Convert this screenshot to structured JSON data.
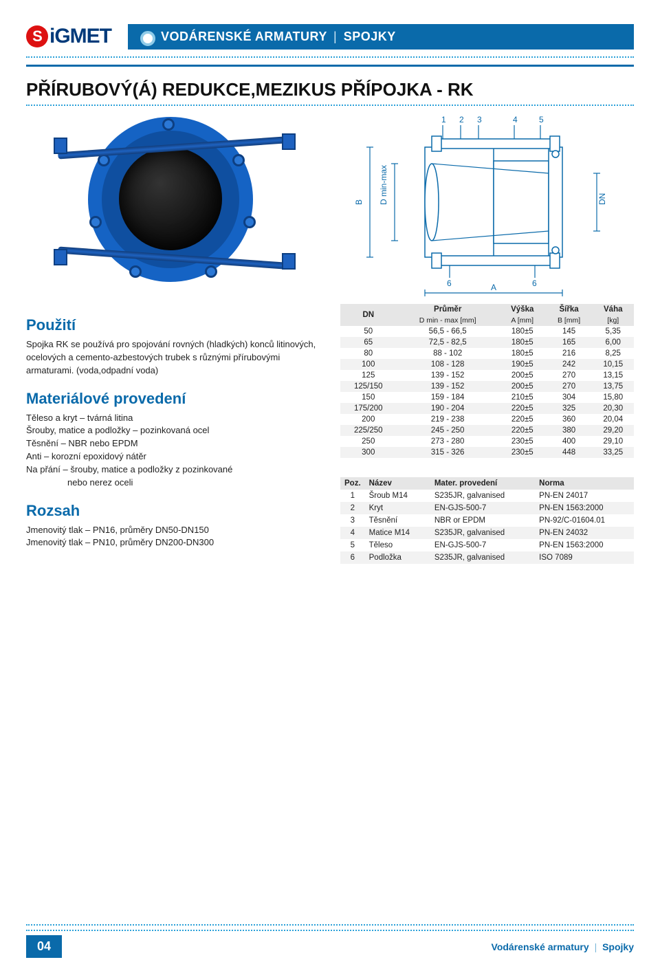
{
  "header": {
    "logo_text": "iGMET",
    "logo_letter": "S",
    "banner_left": "VODÁRENSKÉ ARMATURY",
    "banner_right": "SPOJKY"
  },
  "title": "PŘÍRUBOVÝ(Á) REDUKCE,MEZIKUS PŘÍPOJKA - RK",
  "diagram": {
    "callouts": [
      "1",
      "2",
      "3",
      "4",
      "5",
      "6",
      "6"
    ],
    "dims": {
      "B": "B",
      "Dminmax": "D min-max",
      "DN": "DN",
      "A": "A"
    }
  },
  "usage": {
    "heading": "Použití",
    "text": "Spojka RK se používá pro spojování rovných (hladkých) konců litinových, ocelových a cemento-azbestových trubek s různými přírubovými armaturami. (voda,odpadní voda)"
  },
  "material": {
    "heading": "Materiálové provedení",
    "lines": [
      "Těleso a kryt – tvárná litina",
      "Šrouby, matice a podložky – pozinkovaná ocel",
      "Těsnění – NBR nebo EPDM",
      "Anti – korozní epoxidový nátěr",
      "Na přání – šrouby, matice a podložky z pozinkované"
    ],
    "indent_line": "nebo nerez oceli"
  },
  "range": {
    "heading": "Rozsah",
    "lines": [
      "Jmenovitý tlak – PN16, průměry DN50-DN150",
      "Jmenovitý tlak – PN10, průměry DN200-DN300"
    ]
  },
  "dim_table": {
    "head_top": {
      "dn": "DN",
      "prumer": "Průměr",
      "vyska": "Výška",
      "sirka": "Šířka",
      "vaha": "Váha"
    },
    "head_sub": {
      "d": "D min - max  [mm]",
      "a": "A [mm]",
      "b": "B [mm]",
      "kg": "[kg]"
    },
    "rows": [
      [
        "50",
        "56,5 - 66,5",
        "180±5",
        "145",
        "5,35"
      ],
      [
        "65",
        "72,5 - 82,5",
        "180±5",
        "165",
        "6,00"
      ],
      [
        "80",
        "88 - 102",
        "180±5",
        "216",
        "8,25"
      ],
      [
        "100",
        "108 - 128",
        "190±5",
        "242",
        "10,15"
      ],
      [
        "125",
        "139 - 152",
        "200±5",
        "270",
        "13,15"
      ],
      [
        "125/150",
        "139 - 152",
        "200±5",
        "270",
        "13,75"
      ],
      [
        "150",
        "159 - 184",
        "210±5",
        "304",
        "15,80"
      ],
      [
        "175/200",
        "190 - 204",
        "220±5",
        "325",
        "20,30"
      ],
      [
        "200",
        "219 - 238",
        "220±5",
        "360",
        "20,04"
      ],
      [
        "225/250",
        "245 - 250",
        "220±5",
        "380",
        "29,20"
      ],
      [
        "250",
        "273 - 280",
        "230±5",
        "400",
        "29,10"
      ],
      [
        "300",
        "315 - 326",
        "230±5",
        "448",
        "33,25"
      ]
    ]
  },
  "parts_table": {
    "head": {
      "poz": "Poz.",
      "nazev": "Název",
      "mater": "Mater. provedení",
      "norma": "Norma"
    },
    "rows": [
      [
        "1",
        "Šroub M14",
        "S235JR, galvanised",
        "PN-EN 24017"
      ],
      [
        "2",
        "Kryt",
        "EN-GJS-500-7",
        "PN-EN 1563:2000"
      ],
      [
        "3",
        "Těsnění",
        "NBR or EPDM",
        "PN-92/C-01604.01"
      ],
      [
        "4",
        "Matice M14",
        "S235JR, galvanised",
        "PN-EN 24032"
      ],
      [
        "5",
        "Těleso",
        "EN-GJS-500-7",
        "PN-EN 1563:2000"
      ],
      [
        "6",
        "Podložka",
        "S235JR, galvanised",
        "ISO 7089"
      ]
    ]
  },
  "footer": {
    "page": "04",
    "label_left": "Vodárenské armatury",
    "label_right": "Spojky"
  },
  "colors": {
    "brand_blue": "#0a6aaa",
    "light_blue": "#2aa0d8",
    "flange_blue": "#1563c4",
    "row_alt": "#f2f2f2",
    "head_bg": "#e6e6e6"
  }
}
